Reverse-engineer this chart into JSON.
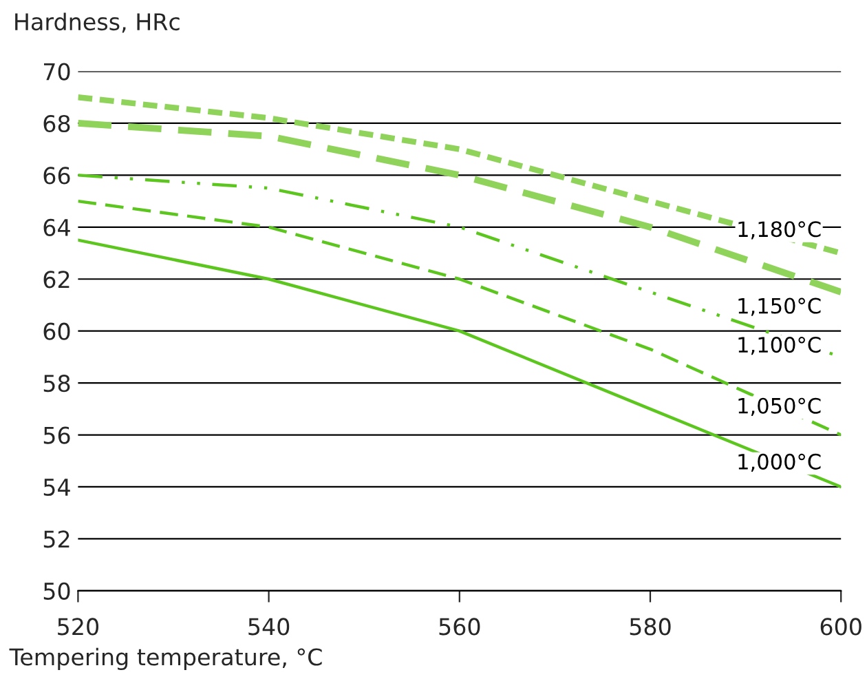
{
  "chart_data": {
    "type": "line",
    "xlabel": "Tempering temperature, °C",
    "ylabel": "Hardness, HRc",
    "x": [
      520,
      540,
      560,
      580,
      600
    ],
    "series": [
      {
        "name": "1,000°C",
        "color": "#5cc61f",
        "line_style": "solid",
        "values": [
          63.5,
          62,
          60,
          57,
          54
        ]
      },
      {
        "name": "1,050°C",
        "color": "#5cc61f",
        "line_style": "dashed",
        "values": [
          65,
          64,
          62,
          59.3,
          56
        ]
      },
      {
        "name": "1,100°C",
        "color": "#5cc61f",
        "line_style": "dotted",
        "values": [
          66,
          65.5,
          64,
          61.5,
          59
        ]
      },
      {
        "name": "1,150°C",
        "color": "#8fd35a",
        "line_style": "dashed",
        "values": [
          68,
          67.5,
          66,
          64,
          61.5
        ]
      },
      {
        "name": "1,180°C",
        "color": "#8fd35a",
        "line_style": "dashed",
        "values": [
          69,
          68.2,
          67,
          65,
          63
        ]
      }
    ],
    "xlim": [
      520,
      600
    ],
    "xticks": [
      520,
      540,
      560,
      580,
      600
    ],
    "ylim": [
      50,
      70
    ],
    "yticks": [
      50,
      52,
      54,
      56,
      58,
      60,
      62,
      64,
      66,
      68,
      70
    ],
    "grid": "y",
    "legend": false,
    "marker": "none"
  }
}
